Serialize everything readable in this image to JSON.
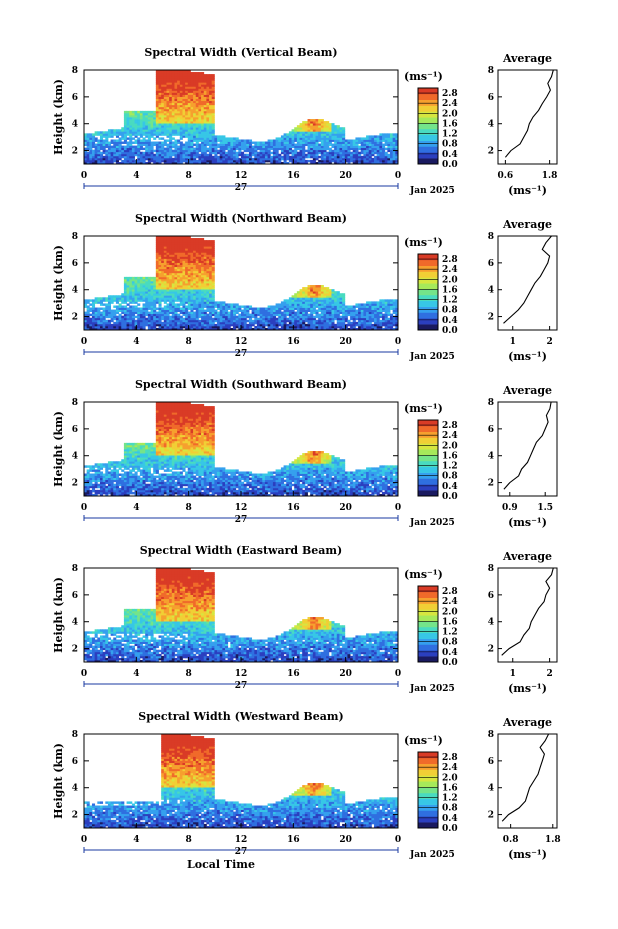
{
  "figure": {
    "xlabel_bottom": "Local Time",
    "day_label": "27",
    "month_label": "Jan 2025"
  },
  "colors": {
    "scale": [
      "#1a1a60",
      "#2b3fbf",
      "#2f6fe0",
      "#35a0ee",
      "#37c7e6",
      "#49dbc0",
      "#74e48a",
      "#a6e95a",
      "#d6e640",
      "#f1cf35",
      "#f6a02e",
      "#f06a2a",
      "#d93b26"
    ]
  },
  "chart_data": [
    {
      "type": "heatmap",
      "title": "Spectral Width (Vertical Beam)",
      "xlabel": "",
      "ylabel": "Height (km)",
      "x_ticks": [
        "0",
        "4",
        "8",
        "12",
        "16",
        "20",
        "0"
      ],
      "y_ticks": [
        "2",
        "4",
        "6",
        "8"
      ],
      "xlim": [
        0,
        24
      ],
      "ylim": [
        1,
        8
      ],
      "colorbar": {
        "label": "(ms⁻¹)",
        "ticks": [
          "0.0",
          "0.4",
          "0.8",
          "1.2",
          "1.6",
          "2.0",
          "2.4",
          "2.8"
        ],
        "range": [
          0,
          3.0
        ]
      },
      "average": {
        "title": "Average",
        "xlabel": "(ms⁻¹)",
        "x_ticks": [
          "0.6",
          "1.8"
        ],
        "xlim": [
          0.4,
          2.0
        ],
        "y_ticks": [
          "2",
          "4",
          "6",
          "8"
        ],
        "ylim": [
          1,
          8
        ],
        "heights": [
          1.5,
          2.0,
          2.5,
          3.0,
          3.5,
          4.0,
          4.5,
          5.0,
          5.5,
          6.0,
          6.5,
          7.0,
          7.5,
          8.0
        ],
        "values": [
          0.6,
          0.75,
          1.0,
          1.1,
          1.2,
          1.25,
          1.35,
          1.5,
          1.6,
          1.72,
          1.82,
          1.75,
          1.85,
          1.9
        ]
      }
    },
    {
      "type": "heatmap",
      "title": "Spectral Width (Northward Beam)",
      "xlabel": "",
      "ylabel": "Height (km)",
      "x_ticks": [
        "0",
        "4",
        "8",
        "12",
        "16",
        "20",
        "0"
      ],
      "y_ticks": [
        "2",
        "4",
        "6",
        "8"
      ],
      "xlim": [
        0,
        24
      ],
      "ylim": [
        1,
        8
      ],
      "colorbar": {
        "label": "(ms⁻¹)",
        "ticks": [
          "0.0",
          "0.4",
          "0.8",
          "1.2",
          "1.6",
          "2.0",
          "2.4",
          "2.8"
        ],
        "range": [
          0,
          3.0
        ]
      },
      "average": {
        "title": "Average",
        "xlabel": "(ms⁻¹)",
        "x_ticks": [
          "1",
          "2"
        ],
        "xlim": [
          0.6,
          2.2
        ],
        "y_ticks": [
          "2",
          "4",
          "6",
          "8"
        ],
        "ylim": [
          1,
          8
        ],
        "heights": [
          1.5,
          2.0,
          2.5,
          3.0,
          3.5,
          4.0,
          4.5,
          5.0,
          5.5,
          6.0,
          6.5,
          7.0,
          7.5,
          8.0
        ],
        "values": [
          0.75,
          0.95,
          1.15,
          1.3,
          1.4,
          1.5,
          1.6,
          1.75,
          1.85,
          1.95,
          2.0,
          1.8,
          1.9,
          2.05
        ]
      }
    },
    {
      "type": "heatmap",
      "title": "Spectral Width (Southward Beam)",
      "xlabel": "",
      "ylabel": "Height (km)",
      "x_ticks": [
        "0",
        "4",
        "8",
        "12",
        "16",
        "20",
        "0"
      ],
      "y_ticks": [
        "2",
        "4",
        "6",
        "8"
      ],
      "xlim": [
        0,
        24
      ],
      "ylim": [
        1,
        8
      ],
      "colorbar": {
        "label": "(ms⁻¹)",
        "ticks": [
          "0.0",
          "0.4",
          "0.8",
          "1.2",
          "1.6",
          "2.0",
          "2.4",
          "2.8"
        ],
        "range": [
          0,
          3.0
        ]
      },
      "average": {
        "title": "Average",
        "xlabel": "(ms⁻¹)",
        "x_ticks": [
          "0.9",
          "1.5"
        ],
        "xlim": [
          0.7,
          1.7
        ],
        "y_ticks": [
          "2",
          "4",
          "6",
          "8"
        ],
        "ylim": [
          1,
          8
        ],
        "heights": [
          1.5,
          2.0,
          2.5,
          3.0,
          3.5,
          4.0,
          4.5,
          5.0,
          5.5,
          6.0,
          6.5,
          7.0,
          7.5,
          8.0
        ],
        "values": [
          0.8,
          0.9,
          1.05,
          1.1,
          1.2,
          1.25,
          1.3,
          1.35,
          1.45,
          1.5,
          1.55,
          1.52,
          1.58,
          1.6
        ]
      }
    },
    {
      "type": "heatmap",
      "title": "Spectral Width (Eastward Beam)",
      "xlabel": "",
      "ylabel": "Height (km)",
      "x_ticks": [
        "0",
        "4",
        "8",
        "12",
        "16",
        "20",
        "0"
      ],
      "y_ticks": [
        "2",
        "4",
        "6",
        "8"
      ],
      "xlim": [
        0,
        24
      ],
      "ylim": [
        1,
        8
      ],
      "colorbar": {
        "label": "(ms⁻¹)",
        "ticks": [
          "0.0",
          "0.4",
          "0.8",
          "1.2",
          "1.6",
          "2.0",
          "2.4",
          "2.8"
        ],
        "range": [
          0,
          3.0
        ]
      },
      "average": {
        "title": "Average",
        "xlabel": "(ms⁻¹)",
        "x_ticks": [
          "1",
          "2"
        ],
        "xlim": [
          0.6,
          2.2
        ],
        "y_ticks": [
          "2",
          "4",
          "6",
          "8"
        ],
        "ylim": [
          1,
          8
        ],
        "heights": [
          1.5,
          2.0,
          2.5,
          3.0,
          3.5,
          4.0,
          4.5,
          5.0,
          5.5,
          6.0,
          6.5,
          7.0,
          7.5,
          8.0
        ],
        "values": [
          0.7,
          0.9,
          1.2,
          1.3,
          1.45,
          1.5,
          1.6,
          1.7,
          1.85,
          1.9,
          2.0,
          1.9,
          2.05,
          2.1
        ]
      }
    },
    {
      "type": "heatmap",
      "title": "Spectral Width (Westward Beam)",
      "xlabel": "",
      "ylabel": "Height (km)",
      "x_ticks": [
        "0",
        "4",
        "8",
        "12",
        "16",
        "20",
        "0"
      ],
      "y_ticks": [
        "2",
        "4",
        "6",
        "8"
      ],
      "xlim": [
        0,
        24
      ],
      "ylim": [
        1,
        8
      ],
      "colorbar": {
        "label": "(ms⁻¹)",
        "ticks": [
          "0.0",
          "0.4",
          "0.8",
          "1.2",
          "1.6",
          "2.0",
          "2.4",
          "2.8"
        ],
        "range": [
          0,
          3.0
        ]
      },
      "average": {
        "title": "Average",
        "xlabel": "(ms⁻¹)",
        "x_ticks": [
          "0.8",
          "1.8"
        ],
        "xlim": [
          0.5,
          1.9
        ],
        "y_ticks": [
          "2",
          "4",
          "6",
          "8"
        ],
        "ylim": [
          1,
          8
        ],
        "heights": [
          1.5,
          2.0,
          2.5,
          3.0,
          3.5,
          4.0,
          4.5,
          5.0,
          5.5,
          6.0,
          6.5,
          7.0,
          7.5,
          8.0
        ],
        "values": [
          0.6,
          0.75,
          1.0,
          1.15,
          1.2,
          1.25,
          1.35,
          1.45,
          1.5,
          1.55,
          1.6,
          1.5,
          1.62,
          1.7
        ]
      }
    }
  ]
}
